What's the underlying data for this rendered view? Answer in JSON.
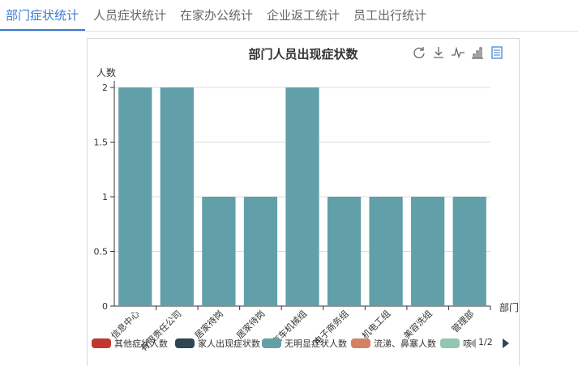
{
  "tabs": [
    {
      "label": "部门症状统计",
      "active": true
    },
    {
      "label": "人员症状统计",
      "active": false
    },
    {
      "label": "在家办公统计",
      "active": false
    },
    {
      "label": "企业返工统计",
      "active": false
    },
    {
      "label": "员工出行统计",
      "active": false
    }
  ],
  "toolbox": [
    "refresh-icon",
    "download-icon",
    "line-chart-icon",
    "bar-chart-icon",
    "data-view-icon"
  ],
  "chart_data": {
    "type": "bar",
    "title": "部门人员出现症状数",
    "ylabel": "人数",
    "xlabel": "部门",
    "ylim": [
      0,
      2
    ],
    "yticks": [
      "0",
      "0.5",
      "1",
      "1.5",
      "2"
    ],
    "categories": [
      "信息中心",
      "有限责任公司",
      "居家待岗",
      "居家待岗",
      "汽车机械组",
      "电子商务组",
      "机电工组",
      "美容洗组",
      "管理部"
    ],
    "series": [
      {
        "name": "无明显症状人数",
        "values": [
          2,
          2,
          1,
          1,
          2,
          1,
          1,
          1,
          1
        ],
        "color": "#61a0a8"
      }
    ],
    "grid": true
  },
  "legend": {
    "items": [
      {
        "name": "其他症状人数",
        "color": "#c23531"
      },
      {
        "name": "家人出现症状数",
        "color": "#2f4554"
      },
      {
        "name": "无明显症状人数",
        "color": "#61a0a8"
      },
      {
        "name": "流涕、鼻塞人数",
        "color": "#d48265"
      },
      {
        "name": "咳",
        "color": "#91c7ae"
      }
    ],
    "page": "1/2"
  }
}
